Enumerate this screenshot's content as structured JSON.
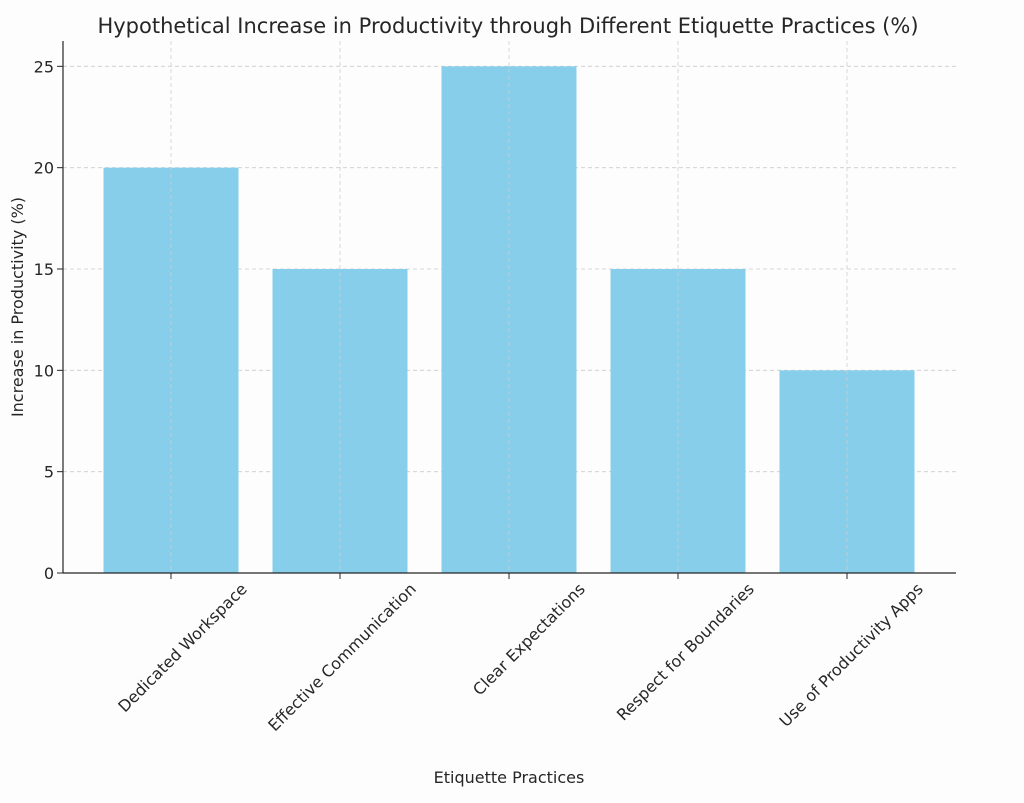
{
  "chart_data": {
    "type": "bar",
    "title": "Hypothetical Increase in Productivity through Different Etiquette Practices (%)",
    "xlabel": "Etiquette Practices",
    "ylabel": "Increase in Productivity (%)",
    "categories": [
      "Dedicated Workspace",
      "Effective Communication",
      "Clear Expectations",
      "Respect for Boundaries",
      "Use of Productivity Apps"
    ],
    "values": [
      20,
      15,
      25,
      15,
      10
    ],
    "ylim": [
      0,
      26.25
    ],
    "yticks": [
      0,
      5,
      10,
      15,
      20,
      25
    ],
    "grid": true,
    "bar_color": "#87CEEB",
    "grid_color": "#cccccc",
    "axis_color": "#262626"
  }
}
